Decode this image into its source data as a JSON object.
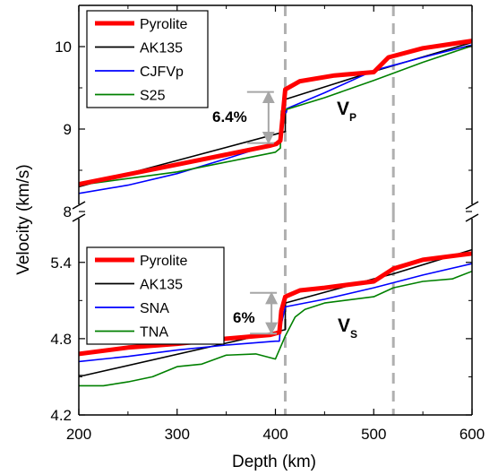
{
  "chart_data": {
    "type": "line",
    "xlabel": "Depth (km)",
    "ylabel": "Velocity (km/s)",
    "xlim": [
      200,
      600
    ],
    "xticks": [
      200,
      300,
      400,
      500,
      600
    ],
    "reference_lines": {
      "depths": [
        410,
        520
      ],
      "color": "#b0b0b0",
      "style": "dashed"
    },
    "panels": [
      {
        "id": "vp",
        "label_main": "V",
        "label_sub": "P",
        "ylim": [
          8.0,
          10.5
        ],
        "yticks": [
          8,
          9,
          10
        ],
        "tick_labels": [
          "8",
          "9",
          "10"
        ],
        "legend_position": "top-left",
        "jump": {
          "label": "6.4%",
          "depth": 393,
          "from": 8.83,
          "to": 9.45
        },
        "series": [
          {
            "name": "Pyrolite",
            "color": "#ff0000",
            "width": "thick",
            "x": [
              200,
              250,
              300,
              350,
              395,
              401,
              405,
              410,
              425,
              460,
              500,
              515,
              550,
              600
            ],
            "y": [
              8.33,
              8.45,
              8.57,
              8.69,
              8.8,
              8.82,
              8.86,
              9.48,
              9.58,
              9.65,
              9.69,
              9.87,
              9.98,
              10.07
            ]
          },
          {
            "name": "AK135",
            "color": "#000000",
            "width": "normal",
            "x": [
              200,
              410,
              410,
              500,
              600
            ],
            "y": [
              8.3,
              8.97,
              9.36,
              9.7,
              10.05
            ]
          },
          {
            "name": "CJFVp",
            "color": "#0000ff",
            "width": "normal",
            "x": [
              200,
              250,
              300,
              350,
              400,
              405,
              406,
              410,
              411,
              412,
              450,
              500,
              550,
              600
            ],
            "y": [
              8.22,
              8.32,
              8.46,
              8.64,
              8.83,
              8.88,
              9.18,
              9.2,
              9.2,
              9.25,
              9.44,
              9.71,
              9.87,
              10.02
            ]
          },
          {
            "name": "S25",
            "color": "#008000",
            "width": "normal",
            "x": [
              200,
              300,
              350,
              400,
              405,
              406,
              450,
              500,
              550,
              600
            ],
            "y": [
              8.32,
              8.48,
              8.6,
              8.72,
              8.77,
              9.22,
              9.38,
              9.59,
              9.81,
              10.01
            ]
          }
        ]
      },
      {
        "id": "vs",
        "label_main": "V",
        "label_sub": "S",
        "ylim": [
          4.2,
          5.8
        ],
        "yticks": [
          4.2,
          4.8,
          5.4
        ],
        "tick_labels": [
          "4.2",
          "4.8",
          "5.4"
        ],
        "legend_position": "middle-left",
        "jump": {
          "label": "6%",
          "depth": 396,
          "from": 4.84,
          "to": 5.16
        },
        "series": [
          {
            "name": "Pyrolite",
            "color": "#ff0000",
            "width": "thick",
            "x": [
              200,
              250,
              300,
              350,
              395,
              404,
              406,
              410,
              425,
              450,
              500,
              520,
              550,
              600
            ],
            "y": [
              4.68,
              4.73,
              4.76,
              4.8,
              4.83,
              4.85,
              5.02,
              5.13,
              5.18,
              5.2,
              5.25,
              5.35,
              5.42,
              5.47
            ]
          },
          {
            "name": "AK135",
            "color": "#000000",
            "width": "normal",
            "x": [
              200,
              205,
              410,
              410,
              500,
              520,
              600
            ],
            "y": [
              4.51,
              4.51,
              4.87,
              5.08,
              5.27,
              5.31,
              5.5
            ]
          },
          {
            "name": "SNA",
            "color": "#0000ff",
            "width": "normal",
            "x": [
              200,
              250,
              300,
              350,
              400,
              404,
              405,
              410,
              450,
              500,
              550,
              600
            ],
            "y": [
              4.62,
              4.66,
              4.71,
              4.75,
              4.78,
              4.78,
              4.88,
              5.05,
              5.11,
              5.2,
              5.3,
              5.39
            ]
          },
          {
            "name": "TNA",
            "color": "#008000",
            "width": "normal",
            "x": [
              200,
              225,
              250,
              275,
              300,
              325,
              350,
              380,
              400,
              410,
              420,
              430,
              450,
              500,
              520,
              550,
              580,
              600
            ],
            "y": [
              4.43,
              4.43,
              4.46,
              4.5,
              4.58,
              4.6,
              4.67,
              4.68,
              4.64,
              4.82,
              4.97,
              5.03,
              5.08,
              5.13,
              5.2,
              5.25,
              5.27,
              5.33
            ]
          }
        ]
      }
    ]
  }
}
